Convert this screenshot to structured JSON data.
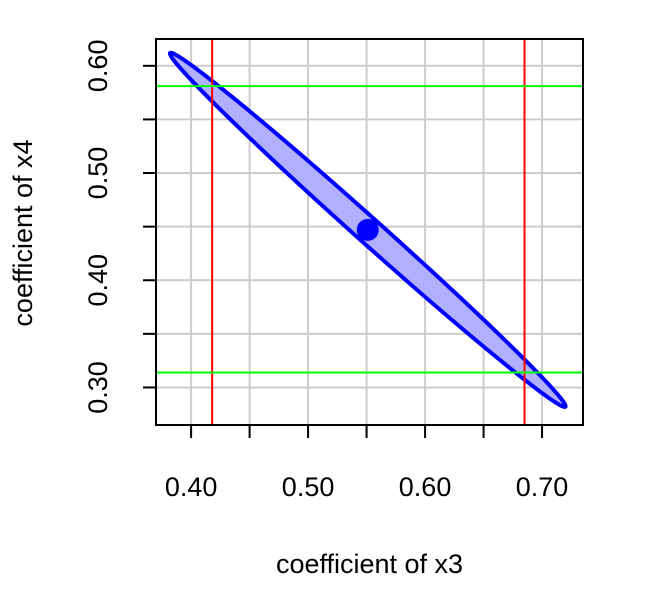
{
  "chart_data": {
    "type": "scatter",
    "title": "",
    "xlabel": "coefficient of x3",
    "ylabel": "coefficient of x4",
    "xlim": [
      0.37,
      0.735
    ],
    "ylim": [
      0.265,
      0.625
    ],
    "x_ticks": [
      0.4,
      0.45,
      0.5,
      0.55,
      0.6,
      0.65,
      0.7
    ],
    "x_tick_labels": [
      "0.40",
      "0.50",
      "0.60",
      "0.70"
    ],
    "x_tick_label_values": [
      0.4,
      0.5,
      0.6,
      0.7
    ],
    "y_ticks": [
      0.3,
      0.35,
      0.4,
      0.45,
      0.5,
      0.55,
      0.6
    ],
    "y_tick_labels": [
      "0.30",
      "0.40",
      "0.50",
      "0.60"
    ],
    "y_tick_label_values": [
      0.3,
      0.4,
      0.5,
      0.6
    ],
    "grid": true,
    "point": {
      "x": 0.551,
      "y": 0.447,
      "color": "#0000ff"
    },
    "confidence_ellipse": {
      "center": [
        0.551,
        0.447
      ],
      "end_top_left": [
        0.382,
        0.612
      ],
      "end_bottom_right": [
        0.72,
        0.282
      ],
      "minor_half_width_data_y": 0.0155,
      "fill": "#b0b0ff",
      "stroke": "#0000ff"
    },
    "vertical_lines": [
      {
        "x": 0.418,
        "color": "#ff0000"
      },
      {
        "x": 0.685,
        "color": "#ff0000"
      }
    ],
    "horizontal_lines": [
      {
        "y": 0.581,
        "color": "#00ff00"
      },
      {
        "y": 0.314,
        "color": "#00ff00"
      }
    ],
    "colors": {
      "grid": "#cccccc",
      "box": "#000000"
    }
  }
}
